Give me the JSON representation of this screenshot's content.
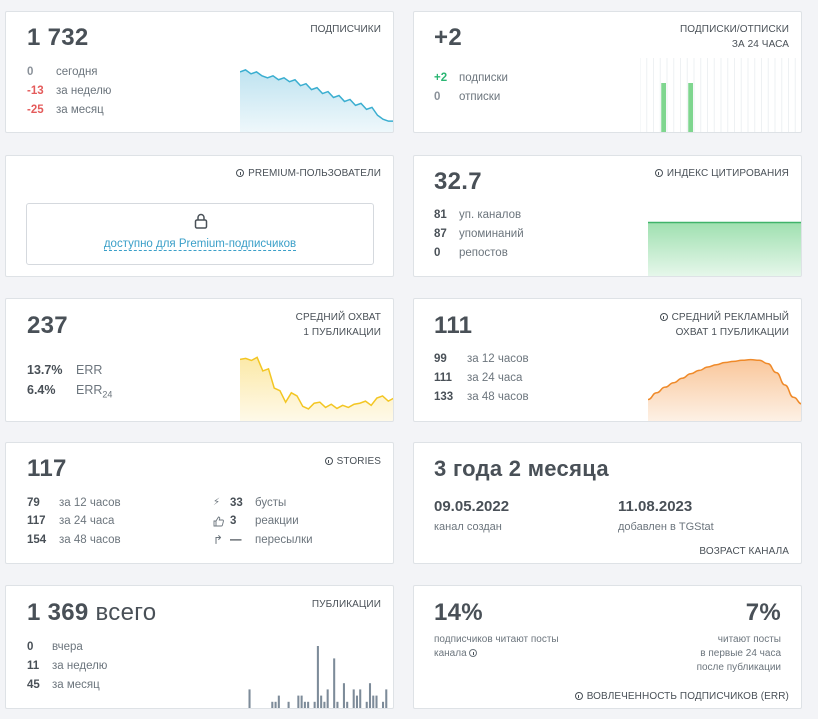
{
  "subscribers": {
    "value": "1 732",
    "label": "ПОДПИСЧИКИ",
    "rows": [
      {
        "value": "0",
        "text": "сегодня",
        "tone": "gray"
      },
      {
        "value": "-13",
        "text": "за неделю",
        "tone": "red"
      },
      {
        "value": "-25",
        "text": "за месяц",
        "tone": "red"
      }
    ]
  },
  "daily": {
    "value": "+2",
    "label_line1": "ПОДПИСКИ/ОТПИСКИ",
    "label_line2": "ЗА 24 ЧАСА",
    "rows": [
      {
        "value": "+2",
        "text": "подписки",
        "tone": "green"
      },
      {
        "value": "0",
        "text": "отписки",
        "tone": "gray"
      }
    ]
  },
  "premium": {
    "label": "PREMIUM-ПОЛЬЗОВАТЕЛИ",
    "icon": "info-icon",
    "lock_icon": "lock-icon",
    "link": "доступно для Premium-подписчиков"
  },
  "citation": {
    "value": "32.7",
    "label": "ИНДЕКС ЦИТИРОВАНИЯ",
    "rows": [
      {
        "value": "81",
        "text": "уп. каналов"
      },
      {
        "value": "87",
        "text": "упоминаний"
      },
      {
        "value": "0",
        "text": "репостов"
      }
    ]
  },
  "reach": {
    "value": "237",
    "label_line1": "СРЕДНИЙ ОХВАТ",
    "label_line2": "1 ПУБЛИКАЦИИ",
    "err_value": "13.7%",
    "err_label": "ERR",
    "err24_value": "6.4%",
    "err24_label": "ERR",
    "err24_sub": "24"
  },
  "ad_reach": {
    "value": "111",
    "label_line1": "СРЕДНИЙ РЕКЛАМНЫЙ",
    "label_line2": "ОХВАТ 1 ПУБЛИКАЦИИ",
    "rows": [
      {
        "value": "99",
        "text": "за 12 часов"
      },
      {
        "value": "111",
        "text": "за 24 часа"
      },
      {
        "value": "133",
        "text": "за 48 часов"
      }
    ]
  },
  "stories": {
    "value": "117",
    "label": "STORIES",
    "rows": [
      {
        "value": "79",
        "text": "за 12 часов"
      },
      {
        "value": "117",
        "text": "за 24 часа"
      },
      {
        "value": "154",
        "text": "за 48 часов"
      }
    ],
    "right_rows": [
      {
        "icon": "bolt-icon",
        "glyph": "⚡",
        "value": "33",
        "text": "бусты"
      },
      {
        "icon": "thumbs-up-icon",
        "glyph": "👍",
        "value": "3",
        "text": "реакции"
      },
      {
        "icon": "forward-icon",
        "glyph": "↱",
        "value": "—",
        "text": "пересылки"
      }
    ]
  },
  "age": {
    "value": "3 года 2 месяца",
    "created_date": "09.05.2022",
    "created_text": "канал создан",
    "added_date": "11.08.2023",
    "added_text": "добавлен в TGStat",
    "label": "ВОЗРАСТ КАНАЛА"
  },
  "posts": {
    "value": "1 369",
    "value_suffix": "всего",
    "label": "ПУБЛИКАЦИИ",
    "rows": [
      {
        "value": "0",
        "text": "вчера"
      },
      {
        "value": "11",
        "text": "за неделю"
      },
      {
        "value": "45",
        "text": "за месяц"
      }
    ]
  },
  "engagement": {
    "left_value": "14%",
    "left_text_1": "подписчиков читают посты",
    "left_text_2": "канала",
    "right_value": "7%",
    "right_text_1": "читают посты",
    "right_text_2": "в первые 24 часа",
    "right_text_3": "после публикации",
    "label": "ВОВЛЕЧЕННОСТЬ ПОДПИСЧИКОВ (ERR)"
  },
  "colors": {
    "subscribers_line": "#3aaed0",
    "subscribers_fill": "#bfe3f0",
    "daily_bar": "#7fd68f",
    "citation_fill": "#9fe0b0",
    "reach_line": "#f3c623",
    "reach_fill": "#fce9a8",
    "ad_line": "#ef8a2a",
    "ad_fill": "#f9c79b",
    "posts_bar": "#7d8b99"
  },
  "chart_data": [
    {
      "type": "area",
      "name": "subscribers-sparkline",
      "values": [
        1757,
        1758,
        1756,
        1757,
        1755,
        1754,
        1755,
        1753,
        1754,
        1752,
        1753,
        1750,
        1751,
        1748,
        1749,
        1746,
        1747,
        1744,
        1745,
        1742,
        1743,
        1740,
        1741,
        1738,
        1739,
        1735,
        1733,
        1732,
        1732
      ],
      "ylim": [
        1726,
        1762
      ]
    },
    {
      "type": "bar",
      "name": "daily-subscriptions",
      "values": [
        0,
        0,
        0,
        1,
        0,
        0,
        0,
        1,
        0,
        0,
        0,
        0,
        0,
        0,
        0,
        0,
        0,
        0,
        0,
        0,
        0,
        0,
        0,
        0
      ],
      "ylim": [
        0,
        1
      ]
    },
    {
      "type": "area",
      "name": "citation-index",
      "values": [
        32.7,
        32.7,
        32.7,
        32.7,
        32.7,
        32.7,
        32.7,
        32.7
      ],
      "ylim": [
        0,
        45
      ]
    },
    {
      "type": "area",
      "name": "average-reach",
      "values": [
        260,
        262,
        258,
        264,
        238,
        242,
        205,
        200,
        178,
        196,
        190,
        170,
        165,
        176,
        178,
        168,
        174,
        166,
        172,
        168,
        174,
        176,
        180,
        172,
        186,
        190,
        180,
        186
      ],
      "ylim": [
        140,
        280
      ]
    },
    {
      "type": "area",
      "name": "average-ad-reach",
      "values": [
        40,
        52,
        62,
        70,
        78,
        86,
        92,
        98,
        102,
        106,
        108,
        110,
        111,
        110,
        104,
        88,
        66,
        44,
        32
      ],
      "ylim": [
        0,
        130
      ]
    },
    {
      "type": "bar",
      "name": "posts-per-day",
      "values": [
        3,
        0,
        0,
        0,
        0,
        0,
        0,
        1,
        1,
        2,
        0,
        0,
        1,
        0,
        0,
        2,
        2,
        1,
        1,
        0,
        1,
        10,
        2,
        1,
        3,
        0,
        8,
        1,
        0,
        4,
        1,
        0,
        3,
        2,
        3,
        0,
        1,
        4,
        2,
        2,
        0,
        1,
        3
      ],
      "ylim": [
        0,
        10
      ]
    }
  ]
}
